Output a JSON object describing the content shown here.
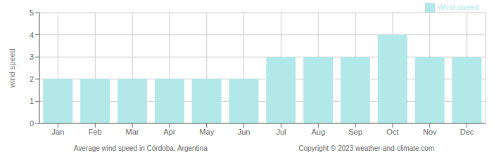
{
  "chart_data": {
    "type": "bar",
    "categories": [
      "Jan",
      "Feb",
      "Mar",
      "Apr",
      "May",
      "Jun",
      "Jul",
      "Aug",
      "Sep",
      "Oct",
      "Nov",
      "Dec"
    ],
    "series": [
      {
        "name": "Wind speed",
        "color": "#b2e8e8",
        "values": [
          2,
          2,
          2,
          2,
          2,
          2,
          3,
          3,
          3,
          4,
          3,
          3
        ]
      }
    ],
    "ylabel": "wind speed",
    "ylim": [
      0,
      5
    ],
    "yticks": [
      0,
      1,
      2,
      3,
      4,
      5
    ],
    "grid": true,
    "legend": "upper right",
    "annotations": [
      "Average wind speed in Córdoba, Argentina",
      "Copyright © 2023  weather-and-climate.com"
    ]
  }
}
